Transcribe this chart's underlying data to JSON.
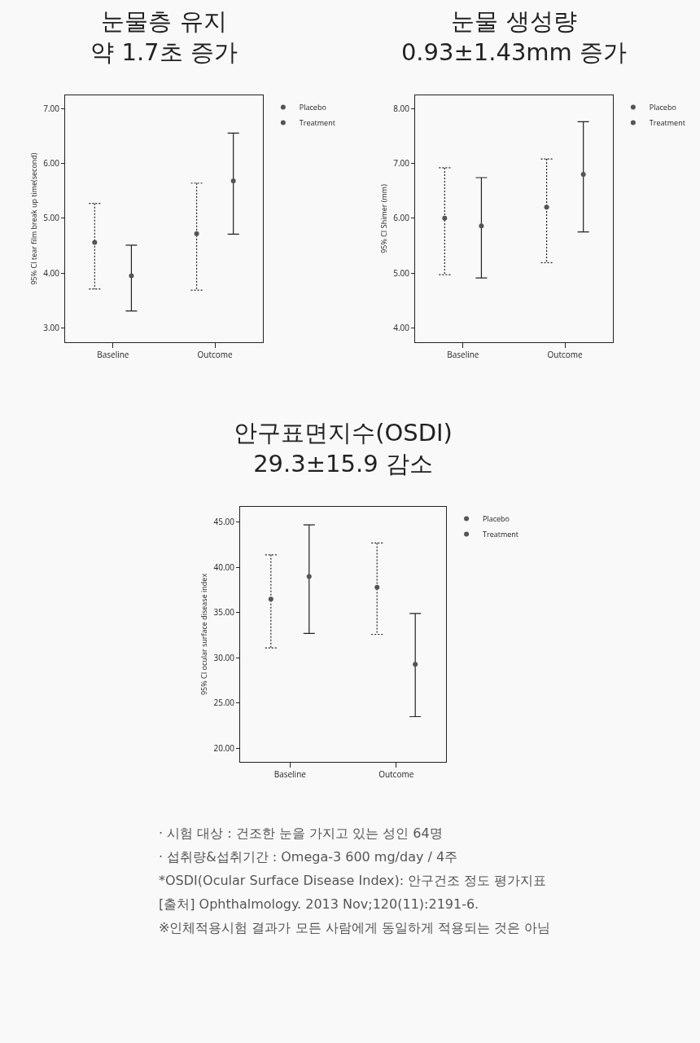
{
  "chart_data": [
    {
      "type": "scatter",
      "title": "눈물층 유지",
      "subtitle": "약 1.7초 증가",
      "ylabel": "95% CI tear film break up time(second)",
      "categories": [
        "Baseline",
        "Outcome"
      ],
      "ylim": [
        2.74,
        7.24
      ],
      "yticks": [
        {
          "value": 3,
          "label": "3.00"
        },
        {
          "value": 4,
          "label": "4.00"
        },
        {
          "value": 5,
          "label": "5.00"
        },
        {
          "value": 6,
          "label": "6.00"
        },
        {
          "value": 7,
          "label": "7.00"
        }
      ],
      "marker": "circle",
      "legend": "top right",
      "grid": false,
      "series": [
        {
          "name": "Placebo",
          "color": "#555555",
          "line_style": "dotted",
          "values": [
            4.56,
            4.72
          ],
          "errors": [
            [
              3.71,
              5.27
            ],
            [
              3.69,
              5.64
            ]
          ]
        },
        {
          "name": "Treatment",
          "color": "#555555",
          "line_style": "solid",
          "values": [
            3.95,
            5.68
          ],
          "errors": [
            [
              3.31,
              4.51
            ],
            [
              4.71,
              6.55
            ]
          ]
        }
      ]
    },
    {
      "type": "scatter",
      "title": "눈물 생성량",
      "subtitle": "0.93±1.43mm 증가",
      "ylabel": "95% CI Shimer (mm)",
      "categories": [
        "Baseline",
        "Outcome"
      ],
      "ylim": [
        3.74,
        8.24
      ],
      "yticks": [
        {
          "value": 4,
          "label": "4.00"
        },
        {
          "value": 5,
          "label": "5.00"
        },
        {
          "value": 6,
          "label": "6.00"
        },
        {
          "value": 7,
          "label": "7.00"
        },
        {
          "value": 8,
          "label": "8.00"
        }
      ],
      "marker": "circle",
      "legend": "top right",
      "grid": false,
      "series": [
        {
          "name": "Placebo",
          "color": "#555555",
          "line_style": "dotted",
          "values": [
            6.0,
            6.2
          ],
          "errors": [
            [
              4.97,
              6.92
            ],
            [
              5.19,
              7.08
            ]
          ]
        },
        {
          "name": "Treatment",
          "color": "#555555",
          "line_style": "solid",
          "values": [
            5.86,
            6.8
          ],
          "errors": [
            [
              4.91,
              6.74
            ],
            [
              5.75,
              7.76
            ]
          ]
        }
      ]
    },
    {
      "type": "scatter",
      "title": "안구표면지수(OSDI)",
      "subtitle": "29.3±15.9 감소",
      "ylabel": "95% CI ocular surface disease index",
      "categories": [
        "Baseline",
        "Outcome"
      ],
      "ylim": [
        18.5,
        46.7
      ],
      "yticks": [
        {
          "value": 20,
          "label": "20.00"
        },
        {
          "value": 25,
          "label": "25.00"
        },
        {
          "value": 30,
          "label": "30.00"
        },
        {
          "value": 35,
          "label": "35.00"
        },
        {
          "value": 40,
          "label": "40.00"
        },
        {
          "value": 45,
          "label": "45.00"
        }
      ],
      "marker": "circle",
      "legend": "top right",
      "grid": false,
      "series": [
        {
          "name": "Placebo",
          "color": "#555555",
          "line_style": "dotted",
          "values": [
            36.5,
            37.8
          ],
          "errors": [
            [
              31.1,
              41.4
            ],
            [
              32.6,
              42.7
            ]
          ]
        },
        {
          "name": "Treatment",
          "color": "#555555",
          "line_style": "solid",
          "values": [
            39.0,
            29.3
          ],
          "errors": [
            [
              32.7,
              44.7
            ],
            [
              23.5,
              34.9
            ]
          ]
        }
      ],
      "annotations": [
        "· 시험 대상 : 건조한 눈을 가지고 있는 성인 64명",
        "· 섭취량&섭취기간 : Omega-3 600 mg/day / 4주",
        "*OSDI(Ocular Surface Disease Index): 안구건조 정도 평가지표",
        "[출처] Ophthalmology. 2013 Nov;120(11):2191-6.",
        "※인체적용시험 결과가 모든 사람에게 동일하게 적용되는 것은 아님"
      ]
    }
  ]
}
